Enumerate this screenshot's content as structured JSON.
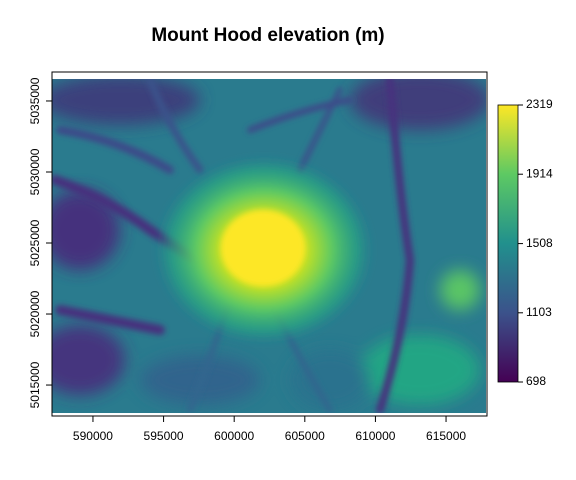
{
  "chart_data": {
    "type": "raster",
    "title": "Mount Hood elevation (m)",
    "xlim": [
      587100,
      617900
    ],
    "ylim": [
      5012820,
      5037040
    ],
    "xticks": [
      590000,
      595000,
      600000,
      605000,
      610000,
      615000
    ],
    "yticks": [
      5015000,
      5020000,
      5025000,
      5030000,
      5035000
    ],
    "colorbar": {
      "lim": [
        698,
        2319
      ],
      "ticks": [
        698,
        1103,
        1508,
        1914,
        2319
      ],
      "colors": [
        "#440154",
        "#3b528b",
        "#21908d",
        "#5dc963",
        "#fde725"
      ]
    }
  }
}
